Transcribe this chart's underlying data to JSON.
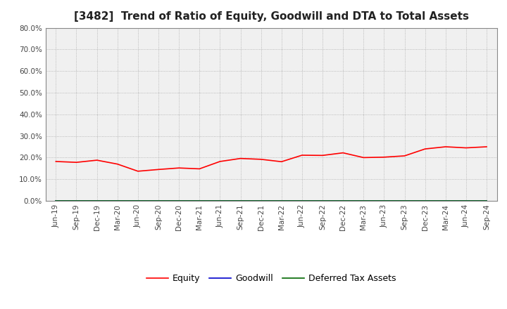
{
  "title": "[3482]  Trend of Ratio of Equity, Goodwill and DTA to Total Assets",
  "x_labels": [
    "Jun-19",
    "Sep-19",
    "Dec-19",
    "Mar-20",
    "Jun-20",
    "Sep-20",
    "Dec-20",
    "Mar-21",
    "Jun-21",
    "Sep-21",
    "Dec-21",
    "Mar-22",
    "Jun-22",
    "Sep-22",
    "Dec-22",
    "Mar-23",
    "Jun-23",
    "Sep-23",
    "Dec-23",
    "Mar-24",
    "Jun-24",
    "Sep-24"
  ],
  "equity": [
    0.182,
    0.178,
    0.188,
    0.17,
    0.137,
    0.145,
    0.152,
    0.148,
    0.182,
    0.196,
    0.192,
    0.181,
    0.211,
    0.21,
    0.222,
    0.2,
    0.202,
    0.208,
    0.24,
    0.25,
    0.245,
    0.25
  ],
  "goodwill": [
    0.0,
    0.0,
    0.0,
    0.0,
    0.0,
    0.0,
    0.0,
    0.0,
    0.0,
    0.0,
    0.0,
    0.0,
    0.0,
    0.0,
    0.0,
    0.0,
    0.0,
    0.0,
    0.0,
    0.0,
    0.0,
    0.0
  ],
  "dta": [
    0.0,
    0.0,
    0.0,
    0.0,
    0.0,
    0.0,
    0.0,
    0.0,
    0.0,
    0.0,
    0.0,
    0.0,
    0.0,
    0.0,
    0.0,
    0.0,
    0.0,
    0.0,
    0.0,
    0.0,
    0.0,
    0.0
  ],
  "equity_color": "#ff0000",
  "goodwill_color": "#0000cc",
  "dta_color": "#006600",
  "ylim": [
    0.0,
    0.8
  ],
  "yticks": [
    0.0,
    0.1,
    0.2,
    0.3,
    0.4,
    0.5,
    0.6,
    0.7,
    0.8
  ],
  "background_color": "#ffffff",
  "plot_bg_color": "#f0f0f0",
  "grid_color": "#999999",
  "title_fontsize": 11,
  "tick_fontsize": 7.5,
  "legend_labels": [
    "Equity",
    "Goodwill",
    "Deferred Tax Assets"
  ]
}
